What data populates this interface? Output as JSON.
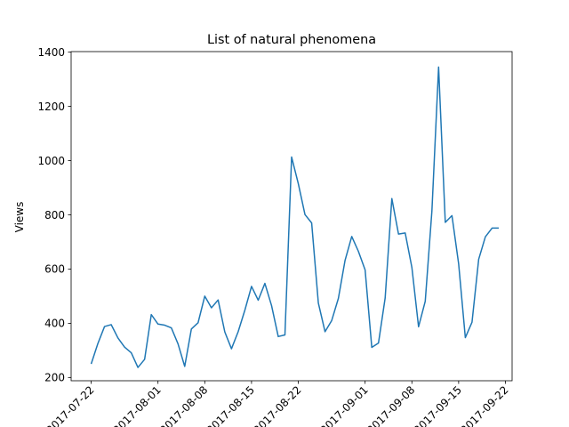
{
  "chart_data": {
    "type": "line",
    "title": "List of natural phenomena",
    "xlabel": "",
    "ylabel": "Views",
    "ylim": [
      188,
      1402
    ],
    "xlim": [
      "2017-07-19",
      "2017-09-23"
    ],
    "grid": false,
    "x_ticks": [
      "2017-07-22",
      "2017-08-01",
      "2017-08-08",
      "2017-08-15",
      "2017-08-22",
      "2017-09-01",
      "2017-09-08",
      "2017-09-15",
      "2017-09-22"
    ],
    "y_ticks": [
      200,
      400,
      600,
      800,
      1000,
      1200,
      1400
    ],
    "series": [
      {
        "color": "#1f77b4",
        "x": [
          "2017-07-22",
          "2017-07-23",
          "2017-07-24",
          "2017-07-25",
          "2017-07-26",
          "2017-07-27",
          "2017-07-28",
          "2017-07-29",
          "2017-07-30",
          "2017-07-31",
          "2017-08-01",
          "2017-08-02",
          "2017-08-03",
          "2017-08-04",
          "2017-08-05",
          "2017-08-06",
          "2017-08-07",
          "2017-08-08",
          "2017-08-09",
          "2017-08-10",
          "2017-08-11",
          "2017-08-12",
          "2017-08-13",
          "2017-08-14",
          "2017-08-15",
          "2017-08-16",
          "2017-08-17",
          "2017-08-18",
          "2017-08-19",
          "2017-08-20",
          "2017-08-21",
          "2017-08-22",
          "2017-08-23",
          "2017-08-24",
          "2017-08-25",
          "2017-08-26",
          "2017-08-27",
          "2017-08-28",
          "2017-08-29",
          "2017-08-30",
          "2017-08-31",
          "2017-09-01",
          "2017-09-02",
          "2017-09-03",
          "2017-09-04",
          "2017-09-05",
          "2017-09-06",
          "2017-09-07",
          "2017-09-08",
          "2017-09-09",
          "2017-09-10",
          "2017-09-11",
          "2017-09-12",
          "2017-09-13",
          "2017-09-14",
          "2017-09-15",
          "2017-09-16",
          "2017-09-17",
          "2017-09-18",
          "2017-09-19",
          "2017-09-20",
          "2017-09-21"
        ],
        "values": [
          250,
          325,
          388,
          395,
          346,
          312,
          291,
          237,
          267,
          432,
          397,
          393,
          383,
          324,
          241,
          379,
          402,
          500,
          457,
          486,
          368,
          306,
          369,
          448,
          536,
          485,
          547,
          465,
          351,
          357,
          1013,
          915,
          801,
          770,
          475,
          369,
          410,
          492,
          632,
          720,
          665,
          597,
          311,
          327,
          493,
          860,
          729,
          733,
          606,
          387,
          481,
          815,
          1345,
          772,
          797,
          619,
          347,
          404,
          636,
          719,
          751,
          751
        ]
      }
    ]
  }
}
